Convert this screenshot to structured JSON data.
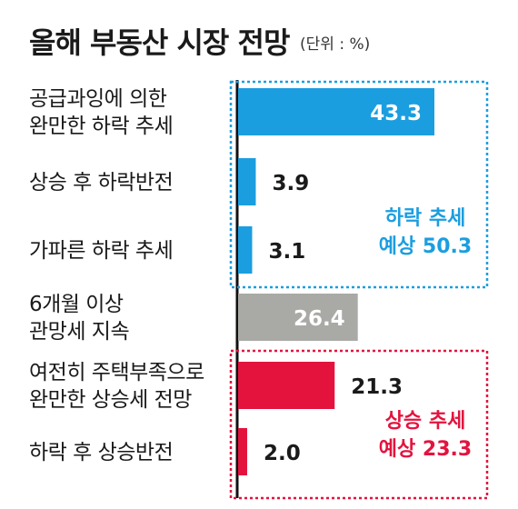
{
  "title": "올해 부동산 시장 전망",
  "unit": "(단위 : %)",
  "colors": {
    "blue": "#1b9ee0",
    "gray": "#a9a9a6",
    "red": "#e3133e"
  },
  "chart_data": {
    "type": "bar",
    "orientation": "horizontal",
    "categories": [
      [
        "공급과잉에 의한",
        "완만한 하락 추세"
      ],
      [
        "상승 후 하락반전"
      ],
      [
        "가파른 하락 추세"
      ],
      [
        "6개월 이상",
        "관망세 지속"
      ],
      [
        "여전히 주택부족으로",
        "완만한 상승세 전망"
      ],
      [
        "하락 후 상승반전"
      ]
    ],
    "values": [
      43.3,
      3.9,
      3.1,
      26.4,
      21.3,
      2.0
    ],
    "value_labels": [
      "43.3",
      "3.9",
      "3.1",
      "26.4",
      "21.3",
      "2.0"
    ],
    "bar_colors": [
      "blue",
      "blue",
      "blue",
      "gray",
      "red",
      "red"
    ],
    "xlim": [
      0,
      50
    ],
    "groups": [
      {
        "lines": [
          "하락 추세",
          "예상 50.3"
        ],
        "color": "blue",
        "from": 0,
        "to": 2
      },
      {
        "lines": [
          "상승 추세",
          "예상 23.3"
        ],
        "color": "red",
        "from": 4,
        "to": 5
      }
    ]
  }
}
